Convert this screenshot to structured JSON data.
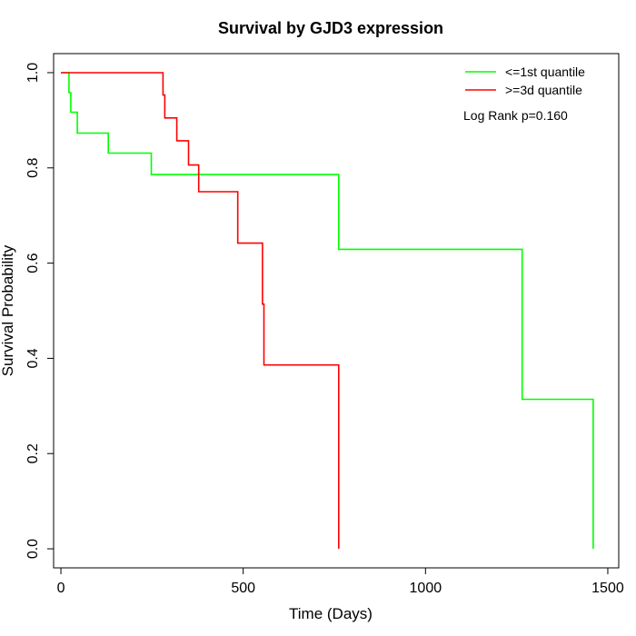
{
  "chart_data": {
    "type": "line",
    "title": "Survival by GJD3 expression",
    "xlabel": "Time (Days)",
    "ylabel": "Survival Probability",
    "xlim": [
      -20,
      1530
    ],
    "ylim": [
      -0.04,
      1.04
    ],
    "x_ticks": [
      0,
      500,
      1000,
      1500
    ],
    "x_tick_labels": [
      "0",
      "500",
      "1000",
      "1500"
    ],
    "y_ticks": [
      0.0,
      0.2,
      0.4,
      0.6,
      0.8,
      1.0
    ],
    "y_tick_labels": [
      "0.0",
      "0.2",
      "0.4",
      "0.6",
      "0.8",
      "1.0"
    ],
    "grid": false,
    "legend_position": "top-right",
    "annotation": "Log Rank p=0.160",
    "series": [
      {
        "name": "<=1st quantile",
        "color": "#00ff00",
        "steps": [
          [
            0,
            1.0
          ],
          [
            22,
            1.0
          ],
          [
            22,
            0.958
          ],
          [
            27,
            0.958
          ],
          [
            27,
            0.917
          ],
          [
            45,
            0.917
          ],
          [
            45,
            0.873
          ],
          [
            130,
            0.873
          ],
          [
            130,
            0.831
          ],
          [
            248,
            0.831
          ],
          [
            248,
            0.786
          ],
          [
            762,
            0.786
          ],
          [
            762,
            0.629
          ],
          [
            1265,
            0.629
          ],
          [
            1265,
            0.314
          ],
          [
            1460,
            0.314
          ],
          [
            1460,
            0.0
          ]
        ]
      },
      {
        "name": ">=3d quantile",
        "color": "#ff0000",
        "steps": [
          [
            0,
            1.0
          ],
          [
            280,
            1.0
          ],
          [
            280,
            0.953
          ],
          [
            285,
            0.953
          ],
          [
            285,
            0.905
          ],
          [
            318,
            0.905
          ],
          [
            318,
            0.857
          ],
          [
            350,
            0.857
          ],
          [
            350,
            0.806
          ],
          [
            378,
            0.806
          ],
          [
            378,
            0.75
          ],
          [
            485,
            0.75
          ],
          [
            485,
            0.642
          ],
          [
            553,
            0.642
          ],
          [
            553,
            0.514
          ],
          [
            557,
            0.514
          ],
          [
            557,
            0.386
          ],
          [
            762,
            0.386
          ],
          [
            762,
            0.0
          ]
        ]
      }
    ]
  }
}
